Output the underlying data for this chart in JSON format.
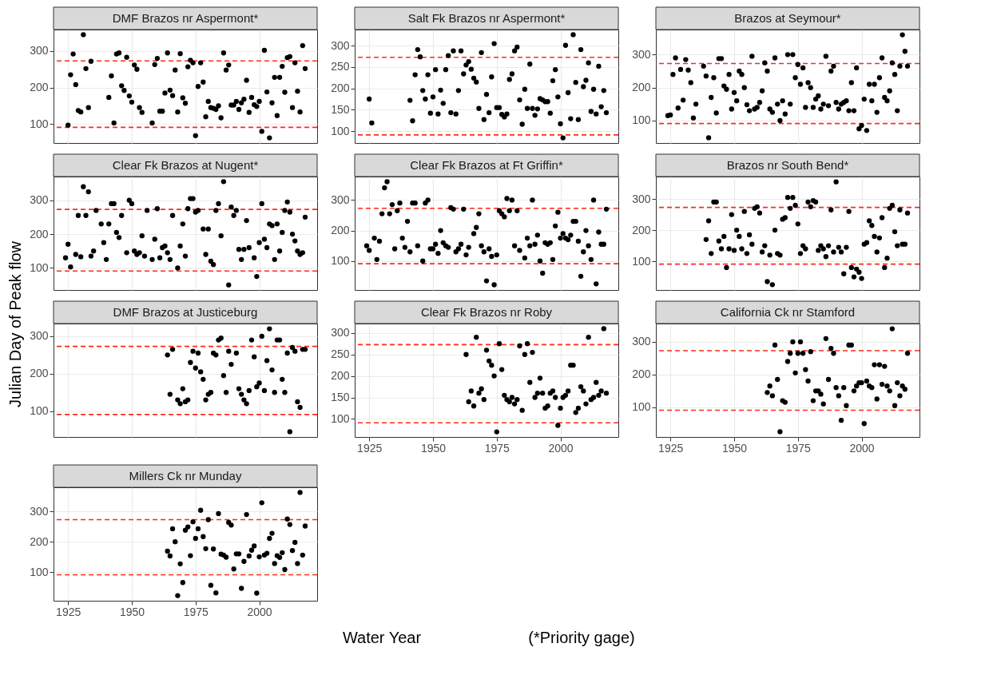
{
  "chart_data": [
    {
      "type": "scatter",
      "title": "DMF Brazos nr Aspermont*",
      "marker": "circle",
      "grid": true,
      "tick_labels": "y",
      "xlim": [
        1919.3,
        2022.7
      ],
      "xticks": [
        1925,
        1950,
        1975,
        2000
      ],
      "ylim": [
        48,
        359
      ],
      "yticks": [
        100,
        200,
        300
      ],
      "ref_lines": [
        {
          "axis": "y",
          "value": 91,
          "color": "#ff2a1a",
          "line_style": "dashed"
        },
        {
          "axis": "y",
          "value": 273,
          "color": "#ff2a1a",
          "line_style": "dashed"
        }
      ],
      "x": [
        1925,
        1926,
        1927,
        1928,
        1929,
        1930,
        1931,
        1932,
        1933,
        1934,
        1941,
        1942,
        1943,
        1944,
        1945,
        1946,
        1947,
        1948,
        1949,
        1950,
        1951,
        1952,
        1953,
        1954,
        1958,
        1959,
        1960,
        1961,
        1962,
        1963,
        1964,
        1965,
        1966,
        1967,
        1968,
        1969,
        1970,
        1971,
        1972,
        1973,
        1974,
        1975,
        1976,
        1977,
        1978,
        1979,
        1980,
        1981,
        1982,
        1983,
        1984,
        1985,
        1986,
        1987,
        1988,
        1989,
        1990,
        1991,
        1992,
        1993,
        1994,
        1995,
        1996,
        1997,
        1998,
        1999,
        2000,
        2001,
        2002,
        2003,
        2004,
        2005,
        2006,
        2007,
        2008,
        2009,
        2010,
        2011,
        2012,
        2013,
        2014,
        2015,
        2016,
        2017,
        2018
      ],
      "series": [
        {
          "color": "#000000",
          "values": [
            97,
            235,
            292,
            208,
            137,
            133,
            345,
            252,
            145,
            272,
            173,
            232,
            103,
            292,
            295,
            205,
            192,
            283,
            177,
            160,
            262,
            250,
            145,
            132,
            103,
            263,
            280,
            135,
            135,
            185,
            295,
            193,
            178,
            248,
            133,
            293,
            172,
            157,
            257,
            275,
            268,
            68,
            203,
            268,
            215,
            120,
            162,
            145,
            143,
            140,
            150,
            117,
            295,
            248,
            262,
            152,
            152,
            162,
            140,
            158,
            168,
            220,
            132,
            173,
            153,
            148,
            162,
            80,
            302,
            188,
            62,
            158,
            228,
            123,
            228,
            258,
            187,
            282,
            285,
            145,
            268,
            190,
            133,
            315,
            252
          ]
        }
      ]
    },
    {
      "type": "scatter",
      "title": "Salt Fk Brazos nr Aspermont*",
      "marker": "circle",
      "grid": true,
      "tick_labels": "y",
      "xlim": [
        1919.3,
        2022.7
      ],
      "xticks": [
        1925,
        1950,
        1975,
        2000
      ],
      "ylim": [
        72,
        338
      ],
      "yticks": [
        100,
        150,
        200,
        250,
        300
      ],
      "ref_lines": [
        {
          "axis": "y",
          "value": 91,
          "color": "#ff2a1a",
          "line_style": "dashed"
        },
        {
          "axis": "y",
          "value": 273,
          "color": "#ff2a1a",
          "line_style": "dashed"
        }
      ],
      "x": [
        1925,
        1926,
        1941,
        1942,
        1943,
        1944,
        1945,
        1946,
        1947,
        1948,
        1949,
        1950,
        1951,
        1952,
        1953,
        1954,
        1955,
        1956,
        1957,
        1958,
        1959,
        1960,
        1961,
        1962,
        1963,
        1964,
        1965,
        1966,
        1967,
        1968,
        1969,
        1970,
        1971,
        1972,
        1973,
        1974,
        1975,
        1976,
        1977,
        1978,
        1979,
        1980,
        1981,
        1982,
        1983,
        1984,
        1985,
        1986,
        1987,
        1988,
        1989,
        1990,
        1991,
        1992,
        1993,
        1994,
        1995,
        1996,
        1997,
        1998,
        1999,
        2000,
        2001,
        2002,
        2003,
        2004,
        2005,
        2006,
        2007,
        2008,
        2009,
        2010,
        2011,
        2012,
        2013,
        2014,
        2015,
        2016,
        2017,
        2018
      ],
      "series": [
        {
          "color": "#000000",
          "values": [
            175,
            119,
            172,
            124,
            232,
            291,
            274,
            195,
            175,
            232,
            142,
            180,
            244,
            140,
            196,
            165,
            244,
            277,
            143,
            288,
            140,
            195,
            288,
            234,
            255,
            263,
            245,
            224,
            215,
            153,
            284,
            127,
            186,
            143,
            227,
            305,
            155,
            155,
            139,
            133,
            140,
            221,
            234,
            288,
            297,
            173,
            116,
            198,
            153,
            257,
            153,
            137,
            152,
            176,
            173,
            169,
            169,
            142,
            218,
            244,
            180,
            117,
            84,
            301,
            190,
            129,
            326,
            214,
            127,
            291,
            204,
            219,
            260,
            146,
            198,
            140,
            252,
            157,
            195,
            143
          ]
        }
      ]
    },
    {
      "type": "scatter",
      "title": "Brazos at Seymour*",
      "marker": "circle",
      "grid": true,
      "tick_labels": "y",
      "xlim": [
        1919.3,
        2022.7
      ],
      "xticks": [
        1925,
        1950,
        1975,
        2000
      ],
      "ylim": [
        32,
        376
      ],
      "yticks": [
        100,
        200,
        300
      ],
      "ref_lines": [
        {
          "axis": "y",
          "value": 91,
          "color": "#ff2a1a",
          "line_style": "dashed"
        },
        {
          "axis": "y",
          "value": 273,
          "color": "#ff2a1a",
          "line_style": "dashed"
        }
      ],
      "x": [
        1924,
        1925,
        1926,
        1927,
        1928,
        1929,
        1930,
        1931,
        1932,
        1933,
        1934,
        1935,
        1938,
        1939,
        1940,
        1941,
        1942,
        1943,
        1944,
        1945,
        1946,
        1947,
        1948,
        1949,
        1950,
        1951,
        1952,
        1953,
        1954,
        1955,
        1956,
        1957,
        1958,
        1959,
        1960,
        1961,
        1962,
        1963,
        1964,
        1965,
        1966,
        1967,
        1968,
        1969,
        1970,
        1971,
        1972,
        1973,
        1974,
        1975,
        1976,
        1977,
        1978,
        1979,
        1980,
        1981,
        1982,
        1983,
        1984,
        1985,
        1986,
        1987,
        1988,
        1989,
        1990,
        1991,
        1992,
        1993,
        1994,
        1995,
        1996,
        1997,
        1998,
        1999,
        2000,
        2001,
        2002,
        2003,
        2004,
        2005,
        2006,
        2007,
        2008,
        2009,
        2010,
        2011,
        2012,
        2013,
        2014,
        2015,
        2016,
        2017,
        2018
      ],
      "series": [
        {
          "color": "#000000",
          "values": [
            115,
            117,
            240,
            290,
            138,
            255,
            162,
            285,
            253,
            215,
            108,
            150,
            265,
            235,
            48,
            170,
            230,
            123,
            288,
            288,
            205,
            195,
            240,
            135,
            185,
            160,
            250,
            240,
            200,
            148,
            130,
            295,
            135,
            140,
            155,
            190,
            275,
            250,
            135,
            125,
            290,
            150,
            100,
            160,
            120,
            300,
            150,
            300,
            230,
            270,
            210,
            260,
            140,
            215,
            200,
            140,
            165,
            175,
            135,
            150,
            295,
            145,
            250,
            265,
            155,
            135,
            150,
            155,
            160,
            130,
            215,
            130,
            260,
            75,
            85,
            165,
            70,
            210,
            160,
            210,
            125,
            230,
            290,
            170,
            160,
            190,
            275,
            240,
            130,
            265,
            360,
            310,
            265
          ]
        }
      ]
    },
    {
      "type": "scatter",
      "title": "Clear Fk Brazos at Nugent*",
      "ylabel": "Julian Day of Peak flow",
      "marker": "circle",
      "grid": true,
      "tick_labels": "y",
      "xlim": [
        1919.3,
        2022.7
      ],
      "xticks": [
        1925,
        1950,
        1975,
        2000
      ],
      "ylim": [
        35,
        370
      ],
      "yticks": [
        100,
        200,
        300
      ],
      "ref_lines": [
        {
          "axis": "y",
          "value": 91,
          "color": "#ff2a1a",
          "line_style": "dashed"
        },
        {
          "axis": "y",
          "value": 273,
          "color": "#ff2a1a",
          "line_style": "dashed"
        }
      ],
      "x": [
        1924,
        1925,
        1926,
        1928,
        1929,
        1930,
        1931,
        1932,
        1933,
        1934,
        1935,
        1936,
        1938,
        1939,
        1940,
        1941,
        1942,
        1943,
        1944,
        1945,
        1946,
        1948,
        1949,
        1950,
        1951,
        1952,
        1953,
        1954,
        1955,
        1956,
        1958,
        1959,
        1960,
        1961,
        1962,
        1963,
        1964,
        1965,
        1966,
        1968,
        1969,
        1970,
        1971,
        1972,
        1973,
        1974,
        1975,
        1976,
        1978,
        1979,
        1980,
        1981,
        1982,
        1983,
        1984,
        1985,
        1986,
        1988,
        1989,
        1990,
        1991,
        1992,
        1993,
        1994,
        1995,
        1996,
        1998,
        1999,
        2000,
        2001,
        2002,
        2003,
        2004,
        2005,
        2006,
        2007,
        2008,
        2009,
        2010,
        2011,
        2012,
        2013,
        2014,
        2015,
        2016,
        2017,
        2018
      ],
      "series": [
        {
          "color": "#000000",
          "values": [
            130,
            170,
            103,
            140,
            255,
            133,
            340,
            255,
            325,
            135,
            150,
            270,
            230,
            175,
            125,
            230,
            290,
            290,
            205,
            190,
            255,
            145,
            300,
            290,
            150,
            140,
            145,
            195,
            135,
            270,
            125,
            185,
            275,
            130,
            160,
            165,
            145,
            125,
            255,
            100,
            165,
            230,
            135,
            275,
            305,
            305,
            265,
            270,
            215,
            140,
            215,
            120,
            110,
            270,
            290,
            195,
            355,
            50,
            280,
            255,
            270,
            155,
            125,
            155,
            240,
            160,
            130,
            75,
            175,
            290,
            185,
            160,
            230,
            225,
            125,
            230,
            150,
            205,
            270,
            295,
            265,
            200,
            180,
            150,
            140,
            145,
            250
          ]
        }
      ]
    },
    {
      "type": "scatter",
      "title": "Clear Fk Brazos at Ft Griffin*",
      "marker": "circle",
      "grid": true,
      "tick_labels": "y",
      "xlim": [
        1919.3,
        2022.7
      ],
      "xticks": [
        1925,
        1950,
        1975,
        2000
      ],
      "ylim": [
        5,
        377
      ],
      "yticks": [
        100,
        200,
        300
      ],
      "ref_lines": [
        {
          "axis": "y",
          "value": 91,
          "color": "#ff2a1a",
          "line_style": "dashed"
        },
        {
          "axis": "y",
          "value": 273,
          "color": "#ff2a1a",
          "line_style": "dashed"
        }
      ],
      "x": [
        1924,
        1925,
        1927,
        1928,
        1929,
        1930,
        1931,
        1932,
        1933,
        1934,
        1935,
        1936,
        1937,
        1938,
        1939,
        1940,
        1941,
        1942,
        1943,
        1944,
        1946,
        1947,
        1948,
        1949,
        1950,
        1951,
        1952,
        1953,
        1954,
        1955,
        1956,
        1957,
        1958,
        1959,
        1960,
        1961,
        1962,
        1963,
        1964,
        1966,
        1967,
        1968,
        1969,
        1970,
        1971,
        1972,
        1973,
        1974,
        1975,
        1976,
        1977,
        1978,
        1979,
        1980,
        1981,
        1982,
        1983,
        1984,
        1986,
        1987,
        1988,
        1989,
        1990,
        1991,
        1992,
        1993,
        1994,
        1995,
        1996,
        1997,
        1998,
        1999,
        2000,
        2001,
        2002,
        2003,
        2004,
        2005,
        2006,
        2007,
        2008,
        2009,
        2010,
        2011,
        2012,
        2013,
        2014,
        2015,
        2016,
        2017,
        2018
      ],
      "series": [
        {
          "color": "#000000",
          "values": [
            150,
            135,
            175,
            105,
            165,
            255,
            340,
            360,
            255,
            285,
            140,
            265,
            290,
            175,
            145,
            230,
            130,
            290,
            290,
            150,
            100,
            290,
            300,
            140,
            140,
            155,
            125,
            200,
            160,
            150,
            145,
            275,
            270,
            130,
            140,
            155,
            270,
            120,
            145,
            190,
            210,
            255,
            150,
            130,
            35,
            140,
            115,
            22,
            120,
            265,
            255,
            245,
            305,
            265,
            300,
            150,
            265,
            135,
            110,
            175,
            150,
            300,
            155,
            185,
            100,
            60,
            160,
            155,
            160,
            105,
            215,
            260,
            175,
            190,
            175,
            170,
            185,
            230,
            230,
            165,
            50,
            130,
            200,
            150,
            105,
            300,
            25,
            195,
            155,
            155,
            270
          ]
        }
      ]
    },
    {
      "type": "scatter",
      "title": "Brazos nr South Bend*",
      "marker": "circle",
      "grid": true,
      "tick_labels": "y",
      "xlim": [
        1919.3,
        2022.7
      ],
      "xticks": [
        1925,
        1950,
        1975,
        2000
      ],
      "ylim": [
        8,
        372
      ],
      "yticks": [
        100,
        200,
        300
      ],
      "ref_lines": [
        {
          "axis": "y",
          "value": 91,
          "color": "#ff2a1a",
          "line_style": "dashed"
        },
        {
          "axis": "y",
          "value": 273,
          "color": "#ff2a1a",
          "line_style": "dashed"
        }
      ],
      "x": [
        1939,
        1940,
        1941,
        1942,
        1943,
        1944,
        1945,
        1946,
        1947,
        1948,
        1949,
        1950,
        1951,
        1952,
        1953,
        1954,
        1955,
        1956,
        1957,
        1958,
        1959,
        1960,
        1961,
        1962,
        1963,
        1964,
        1965,
        1966,
        1967,
        1968,
        1969,
        1970,
        1971,
        1972,
        1973,
        1974,
        1975,
        1976,
        1977,
        1978,
        1979,
        1980,
        1981,
        1982,
        1983,
        1984,
        1985,
        1986,
        1987,
        1988,
        1989,
        1990,
        1991,
        1992,
        1993,
        1994,
        1995,
        1996,
        1997,
        1998,
        1999,
        2000,
        2001,
        2002,
        2003,
        2004,
        2005,
        2006,
        2007,
        2008,
        2009,
        2010,
        2011,
        2012,
        2013,
        2014,
        2015,
        2016,
        2017,
        2018
      ],
      "series": [
        {
          "color": "#000000",
          "values": [
            170,
            230,
            125,
            290,
            290,
            165,
            140,
            180,
            80,
            140,
            250,
            135,
            200,
            180,
            140,
            260,
            125,
            185,
            155,
            270,
            275,
            255,
            130,
            150,
            35,
            120,
            25,
            200,
            125,
            120,
            235,
            240,
            305,
            270,
            305,
            280,
            220,
            125,
            150,
            140,
            290,
            275,
            295,
            290,
            135,
            150,
            140,
            115,
            150,
            265,
            130,
            355,
            145,
            130,
            60,
            145,
            260,
            80,
            50,
            75,
            65,
            45,
            155,
            160,
            230,
            215,
            180,
            130,
            175,
            240,
            80,
            110,
            270,
            280,
            195,
            150,
            265,
            155,
            155,
            255
          ]
        }
      ]
    },
    {
      "type": "scatter",
      "title": "DMF Brazos at Justiceburg",
      "marker": "circle",
      "grid": true,
      "tick_labels": "y",
      "xlim": [
        1919.3,
        2022.7
      ],
      "xticks": [
        1925,
        1950,
        1975,
        2000
      ],
      "ylim": [
        31,
        334
      ],
      "yticks": [
        100,
        200,
        300
      ],
      "ref_lines": [
        {
          "axis": "y",
          "value": 91,
          "color": "#ff2a1a",
          "line_style": "dashed"
        },
        {
          "axis": "y",
          "value": 273,
          "color": "#ff2a1a",
          "line_style": "dashed"
        }
      ],
      "x": [
        1964,
        1965,
        1966,
        1968,
        1969,
        1970,
        1971,
        1972,
        1973,
        1974,
        1975,
        1976,
        1977,
        1978,
        1979,
        1980,
        1981,
        1982,
        1983,
        1984,
        1985,
        1986,
        1987,
        1988,
        1989,
        1991,
        1992,
        1993,
        1994,
        1995,
        1996,
        1997,
        1998,
        1999,
        2000,
        2001,
        2002,
        2003,
        2004,
        2005,
        2006,
        2007,
        2008,
        2009,
        2010,
        2011,
        2012,
        2013,
        2014,
        2015,
        2016,
        2017,
        2018
      ],
      "series": [
        {
          "color": "#000000",
          "values": [
            250,
            145,
            265,
            130,
            120,
            160,
            125,
            130,
            230,
            260,
            215,
            255,
            205,
            185,
            130,
            145,
            150,
            255,
            250,
            290,
            295,
            195,
            150,
            260,
            225,
            255,
            160,
            145,
            130,
            120,
            155,
            290,
            245,
            165,
            175,
            300,
            155,
            235,
            320,
            210,
            150,
            290,
            290,
            185,
            150,
            255,
            45,
            270,
            260,
            125,
            110,
            265,
            265
          ]
        }
      ]
    },
    {
      "type": "scatter",
      "title": "Clear Fk Brazos nr Roby",
      "marker": "circle",
      "grid": true,
      "xlim": [
        1919.3,
        2022.7
      ],
      "xticks": [
        1925,
        1950,
        1975,
        2000
      ],
      "ylim": [
        58,
        322
      ],
      "yticks": [
        100,
        150,
        200,
        250,
        300
      ],
      "ref_lines": [
        {
          "axis": "y",
          "value": 91,
          "color": "#ff2a1a",
          "line_style": "dashed"
        },
        {
          "axis": "y",
          "value": 273,
          "color": "#ff2a1a",
          "line_style": "dashed"
        }
      ],
      "x": [
        1963,
        1964,
        1965,
        1966,
        1967,
        1968,
        1969,
        1970,
        1971,
        1972,
        1973,
        1974,
        1975,
        1976,
        1977,
        1978,
        1979,
        1980,
        1981,
        1982,
        1983,
        1984,
        1985,
        1986,
        1987,
        1988,
        1989,
        1990,
        1991,
        1992,
        1993,
        1994,
        1995,
        1996,
        1997,
        1998,
        1999,
        2000,
        2001,
        2002,
        2003,
        2004,
        2005,
        2006,
        2007,
        2008,
        2009,
        2010,
        2011,
        2012,
        2013,
        2014,
        2015,
        2016,
        2017,
        2018
      ],
      "series": [
        {
          "color": "#000000",
          "values": [
            250,
            140,
            165,
            130,
            290,
            160,
            170,
            145,
            260,
            235,
            225,
            200,
            70,
            275,
            215,
            155,
            145,
            140,
            150,
            135,
            145,
            270,
            120,
            250,
            275,
            185,
            255,
            150,
            160,
            195,
            160,
            125,
            130,
            160,
            165,
            150,
            85,
            125,
            150,
            155,
            165,
            225,
            225,
            115,
            125,
            175,
            165,
            135,
            290,
            145,
            150,
            185,
            155,
            165,
            310,
            160
          ]
        }
      ]
    },
    {
      "type": "scatter",
      "title": "California Ck nr Stamford",
      "marker": "circle",
      "grid": true,
      "xlim": [
        1919.3,
        2022.7
      ],
      "xticks": [
        1925,
        1950,
        1975,
        2000
      ],
      "ylim": [
        9,
        356
      ],
      "yticks": [
        100,
        200,
        300
      ],
      "ref_lines": [
        {
          "axis": "y",
          "value": 91,
          "color": "#ff2a1a",
          "line_style": "dashed"
        },
        {
          "axis": "y",
          "value": 273,
          "color": "#ff2a1a",
          "line_style": "dashed"
        }
      ],
      "x": [
        1963,
        1964,
        1965,
        1966,
        1967,
        1968,
        1969,
        1970,
        1971,
        1972,
        1973,
        1974,
        1975,
        1976,
        1977,
        1978,
        1979,
        1980,
        1981,
        1982,
        1983,
        1984,
        1985,
        1986,
        1987,
        1988,
        1989,
        1990,
        1991,
        1992,
        1993,
        1994,
        1995,
        1996,
        1997,
        1998,
        1999,
        2000,
        2001,
        2002,
        2003,
        2004,
        2005,
        2006,
        2007,
        2008,
        2009,
        2010,
        2011,
        2012,
        2013,
        2014,
        2015,
        2016,
        2017,
        2018
      ],
      "series": [
        {
          "color": "#000000",
          "values": [
            145,
            165,
            135,
            290,
            185,
            25,
            120,
            115,
            240,
            265,
            300,
            205,
            265,
            300,
            265,
            215,
            180,
            270,
            120,
            150,
            150,
            140,
            110,
            310,
            185,
            280,
            265,
            160,
            135,
            60,
            160,
            105,
            290,
            290,
            150,
            165,
            175,
            175,
            50,
            180,
            165,
            160,
            230,
            125,
            230,
            170,
            225,
            165,
            150,
            340,
            105,
            175,
            135,
            165,
            155,
            265
          ]
        }
      ]
    },
    {
      "type": "scatter",
      "title": "Millers Ck nr Munday",
      "xlabel": "Water Year",
      "annotations": [
        "(*Priority gage)"
      ],
      "marker": "circle",
      "grid": true,
      "xlim": [
        1919.3,
        2022.7
      ],
      "xticks": [
        1925,
        1950,
        1975,
        2000
      ],
      "ylim": [
        5,
        380
      ],
      "yticks": [
        100,
        200,
        300
      ],
      "ref_lines": [
        {
          "axis": "y",
          "value": 91,
          "color": "#ff2a1a",
          "line_style": "dashed"
        },
        {
          "axis": "y",
          "value": 273,
          "color": "#ff2a1a",
          "line_style": "dashed"
        }
      ],
      "x": [
        1964,
        1965,
        1966,
        1967,
        1968,
        1969,
        1970,
        1971,
        1972,
        1973,
        1974,
        1975,
        1976,
        1977,
        1978,
        1979,
        1980,
        1981,
        1982,
        1983,
        1984,
        1985,
        1986,
        1987,
        1988,
        1989,
        1990,
        1991,
        1992,
        1993,
        1994,
        1995,
        1996,
        1997,
        1998,
        1999,
        2000,
        2001,
        2002,
        2003,
        2004,
        2005,
        2006,
        2007,
        2008,
        2009,
        2010,
        2011,
        2012,
        2013,
        2014,
        2015,
        2016,
        2017,
        2018
      ],
      "series": [
        {
          "color": "#000000",
          "values": [
            169,
            153,
            243,
            200,
            22,
            127,
            65,
            238,
            249,
            154,
            266,
            211,
            243,
            304,
            217,
            177,
            273,
            56,
            176,
            31,
            293,
            159,
            156,
            149,
            264,
            255,
            110,
            160,
            160,
            46,
            135,
            290,
            153,
            172,
            186,
            30,
            150,
            329,
            156,
            162,
            211,
            228,
            128,
            154,
            148,
            164,
            108,
            275,
            257,
            171,
            198,
            128,
            363,
            156,
            252
          ]
        }
      ]
    }
  ]
}
